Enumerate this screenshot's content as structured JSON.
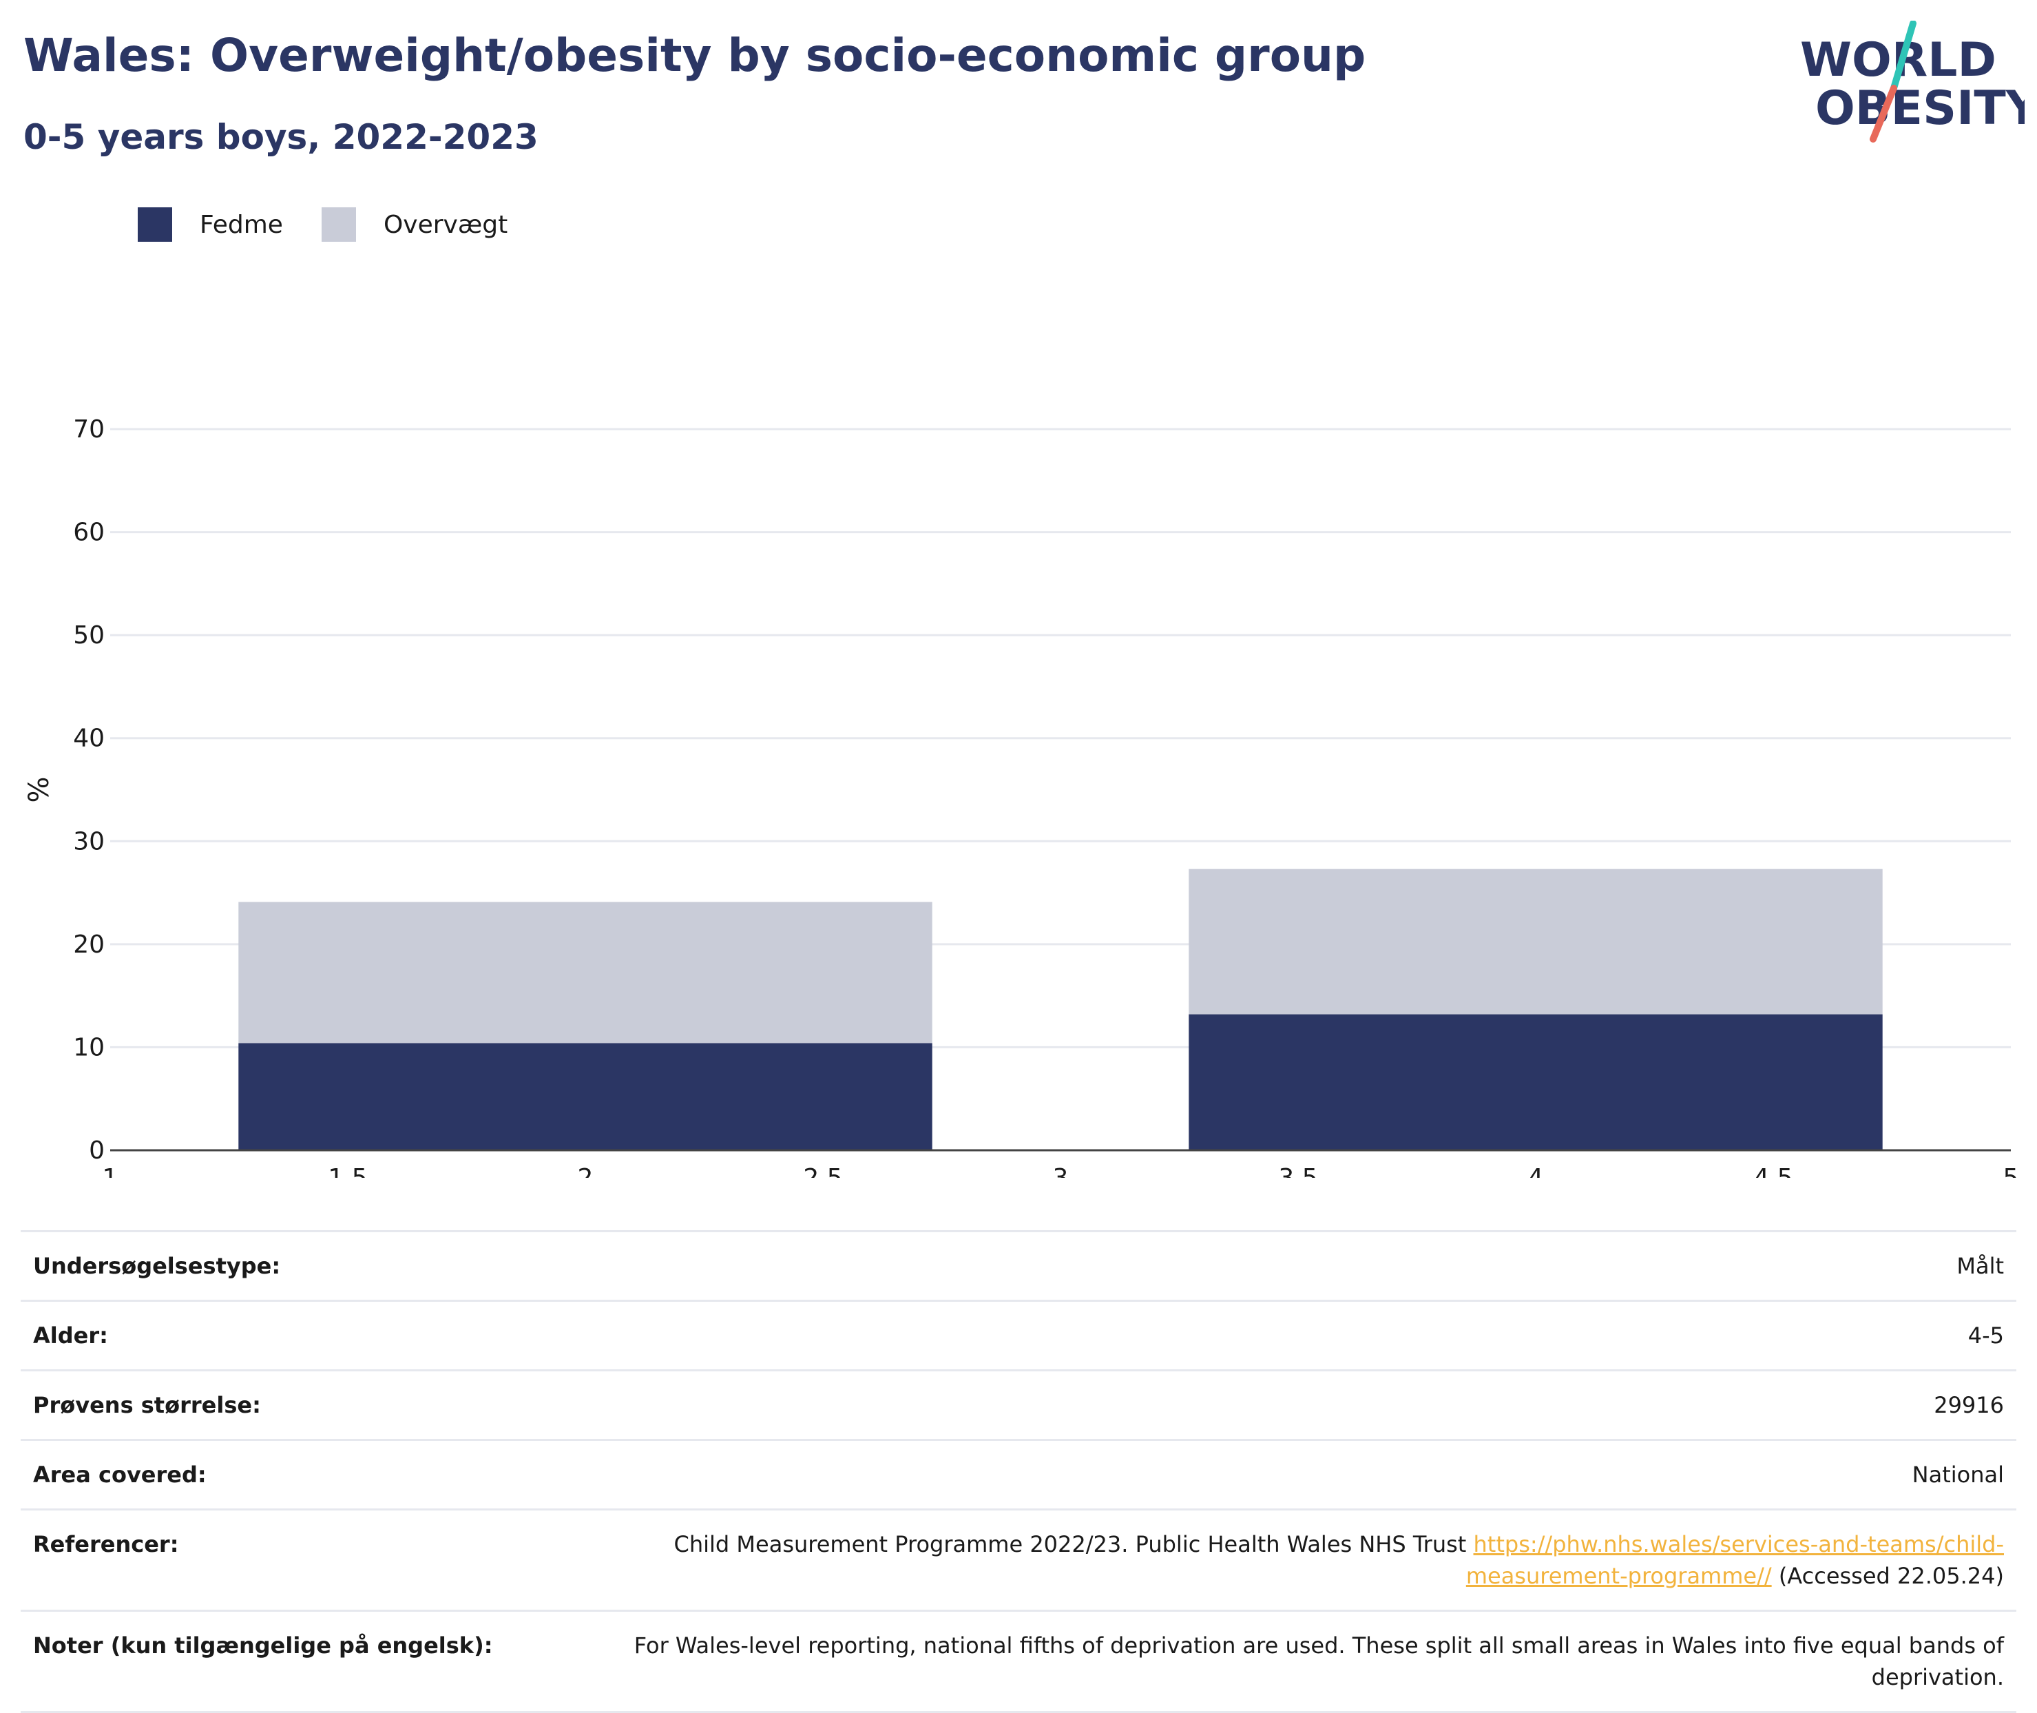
{
  "header": {
    "title": "Wales: Overweight/obesity by socio-economic group",
    "subtitle": "0-5 years boys, 2022-2023"
  },
  "logo": {
    "line1": "WORLD",
    "line2": "OBESITY",
    "colors": {
      "text": "#2b3664",
      "slash_top": "#2ec4b6",
      "slash_bottom": "#e8695a"
    }
  },
  "legend": [
    {
      "label": "Fedme",
      "color": "#2b3664"
    },
    {
      "label": "Overvægt",
      "color": "#c9ccd8"
    }
  ],
  "chart_data": {
    "type": "bar",
    "stacked": true,
    "ylabel": "%",
    "xlabel": "",
    "ylim": [
      0,
      70
    ],
    "yticks": [
      0,
      10,
      20,
      30,
      40,
      50,
      60,
      70
    ],
    "xlim": [
      1,
      5
    ],
    "xticks": [
      "1",
      "1.5",
      "2",
      "2.5",
      "3",
      "3.5",
      "4",
      "4.5",
      "5"
    ],
    "grid": true,
    "legend_position": "top-left",
    "bar_span": [
      [
        1.27,
        2.73
      ],
      [
        3.27,
        4.73
      ]
    ],
    "series": [
      {
        "name": "Fedme",
        "color": "#2b3664",
        "values": [
          10.4,
          13.2
        ]
      },
      {
        "name": "Overvægt",
        "color": "#c9ccd8",
        "values": [
          13.7,
          14.1
        ]
      }
    ]
  },
  "info": {
    "rows": [
      {
        "label": "Undersøgelsestype:",
        "value": "Målt"
      },
      {
        "label": "Alder:",
        "value": "4-5"
      },
      {
        "label": "Prøvens størrelse:",
        "value": "29916"
      },
      {
        "label": "Area covered:",
        "value": "National"
      }
    ],
    "reference": {
      "label": "Referencer:",
      "text": "Child Measurement Programme 2022/23. Public Health Wales NHS Trust ",
      "link": "https://phw.nhs.wales/services-and-teams/child-measurement-programme//",
      "after": " (Accessed 22.05.24)"
    },
    "notes": {
      "label": "Noter (kun tilgængelige på engelsk):",
      "value": "For Wales-level reporting, national fifths of deprivation are used. These split all small areas in Wales into five equal bands of deprivation."
    }
  }
}
